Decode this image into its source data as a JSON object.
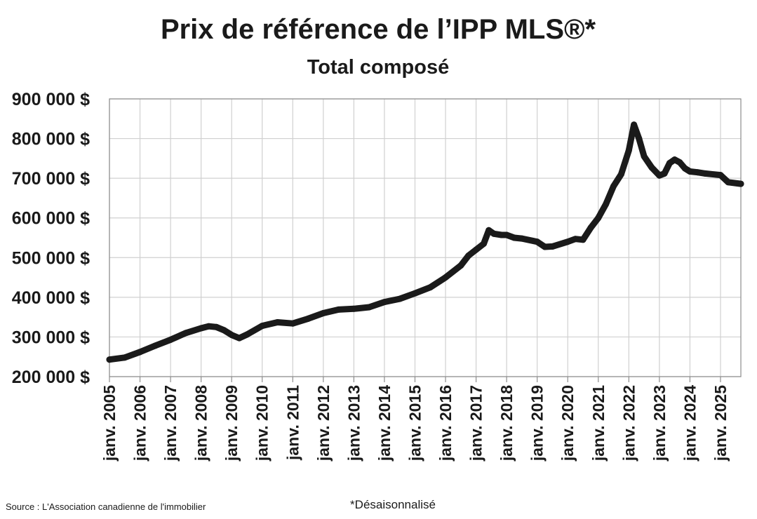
{
  "chart_data": {
    "type": "line",
    "title": "Prix de référence de l’IPP MLS®*",
    "subtitle": "Total composé",
    "ylim": [
      200000,
      900000
    ],
    "xlim": [
      "2005-01",
      "2025-09"
    ],
    "grid": true,
    "y_ticks": [
      {
        "value": 200000,
        "label": "200 000 $"
      },
      {
        "value": 300000,
        "label": "300 000 $"
      },
      {
        "value": 400000,
        "label": "400 000 $"
      },
      {
        "value": 500000,
        "label": "500 000 $"
      },
      {
        "value": 600000,
        "label": "600 000 $"
      },
      {
        "value": 700000,
        "label": "700 000 $"
      },
      {
        "value": 800000,
        "label": "800 000 $"
      },
      {
        "value": 900000,
        "label": "900 000 $"
      }
    ],
    "x_ticks": [
      {
        "value": "2005-01",
        "label": "janv. 2005"
      },
      {
        "value": "2006-01",
        "label": "janv. 2006"
      },
      {
        "value": "2007-01",
        "label": "janv. 2007"
      },
      {
        "value": "2008-01",
        "label": "janv. 2008"
      },
      {
        "value": "2009-01",
        "label": "janv. 2009"
      },
      {
        "value": "2010-01",
        "label": "janv. 2010"
      },
      {
        "value": "2011-01",
        "label": "janv. 2011"
      },
      {
        "value": "2012-01",
        "label": "janv. 2012"
      },
      {
        "value": "2013-01",
        "label": "janv. 2013"
      },
      {
        "value": "2014-01",
        "label": "janv. 2014"
      },
      {
        "value": "2015-01",
        "label": "janv. 2015"
      },
      {
        "value": "2016-01",
        "label": "janv. 2016"
      },
      {
        "value": "2017-01",
        "label": "janv. 2017"
      },
      {
        "value": "2018-01",
        "label": "janv. 2018"
      },
      {
        "value": "2019-01",
        "label": "janv. 2019"
      },
      {
        "value": "2020-01",
        "label": "janv. 2020"
      },
      {
        "value": "2021-01",
        "label": "janv. 2021"
      },
      {
        "value": "2022-01",
        "label": "janv. 2022"
      },
      {
        "value": "2023-01",
        "label": "janv. 2023"
      },
      {
        "value": "2024-01",
        "label": "janv. 2024"
      },
      {
        "value": "2025-01",
        "label": "janv. 2025"
      }
    ],
    "series": [
      {
        "color": "#1a1a1a",
        "points": [
          [
            "2005-01",
            243000
          ],
          [
            "2005-07",
            248000
          ],
          [
            "2006-01",
            262000
          ],
          [
            "2006-07",
            278000
          ],
          [
            "2007-01",
            293000
          ],
          [
            "2007-07",
            310000
          ],
          [
            "2008-01",
            322000
          ],
          [
            "2008-04",
            327000
          ],
          [
            "2008-07",
            325000
          ],
          [
            "2008-10",
            317000
          ],
          [
            "2009-01",
            305000
          ],
          [
            "2009-04",
            297000
          ],
          [
            "2009-07",
            306000
          ],
          [
            "2010-01",
            328000
          ],
          [
            "2010-07",
            337000
          ],
          [
            "2011-01",
            334000
          ],
          [
            "2011-07",
            346000
          ],
          [
            "2012-01",
            360000
          ],
          [
            "2012-07",
            369000
          ],
          [
            "2013-01",
            371000
          ],
          [
            "2013-07",
            375000
          ],
          [
            "2014-01",
            388000
          ],
          [
            "2014-07",
            396000
          ],
          [
            "2015-01",
            410000
          ],
          [
            "2015-07",
            425000
          ],
          [
            "2016-01",
            450000
          ],
          [
            "2016-07",
            480000
          ],
          [
            "2016-10",
            505000
          ],
          [
            "2017-01",
            520000
          ],
          [
            "2017-04",
            535000
          ],
          [
            "2017-06",
            569000
          ],
          [
            "2017-08",
            560000
          ],
          [
            "2017-11",
            557000
          ],
          [
            "2018-01",
            557000
          ],
          [
            "2018-04",
            550000
          ],
          [
            "2018-07",
            548000
          ],
          [
            "2019-01",
            540000
          ],
          [
            "2019-04",
            527000
          ],
          [
            "2019-07",
            528000
          ],
          [
            "2020-01",
            540000
          ],
          [
            "2020-04",
            547000
          ],
          [
            "2020-07",
            545000
          ],
          [
            "2020-10",
            575000
          ],
          [
            "2021-01",
            600000
          ],
          [
            "2021-04",
            635000
          ],
          [
            "2021-07",
            680000
          ],
          [
            "2021-10",
            710000
          ],
          [
            "2022-01",
            770000
          ],
          [
            "2022-03",
            835000
          ],
          [
            "2022-05",
            800000
          ],
          [
            "2022-07",
            755000
          ],
          [
            "2022-10",
            727000
          ],
          [
            "2023-01",
            707000
          ],
          [
            "2023-03",
            712000
          ],
          [
            "2023-05",
            738000
          ],
          [
            "2023-07",
            747000
          ],
          [
            "2023-09",
            740000
          ],
          [
            "2023-11",
            725000
          ],
          [
            "2024-01",
            717000
          ],
          [
            "2024-04",
            715000
          ],
          [
            "2024-07",
            712000
          ],
          [
            "2025-01",
            708000
          ],
          [
            "2025-04",
            690000
          ],
          [
            "2025-09",
            686000
          ]
        ]
      }
    ]
  },
  "note": "*Désaisonnalisé",
  "source": "Source : L'Association canadienne de l'immobilier"
}
